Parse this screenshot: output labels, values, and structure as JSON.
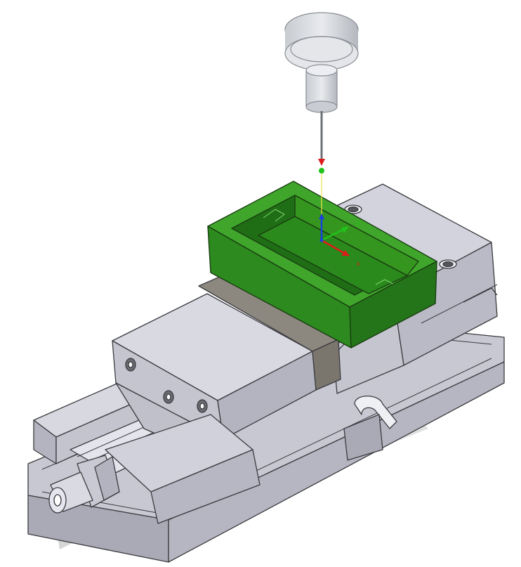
{
  "viewport": {
    "background": "#ffffff",
    "objects": [
      {
        "name": "vise-base",
        "color": "#c9cad4"
      },
      {
        "name": "fixed-jaw",
        "color": "#d4d5de"
      },
      {
        "name": "movable-jaw",
        "color": "#d4d5de"
      },
      {
        "name": "jaw-plate",
        "color": "#8c887f"
      },
      {
        "name": "workpiece-stock",
        "color": "#2f8f20"
      },
      {
        "name": "probe-tool",
        "color": "#d8dadf"
      }
    ],
    "wcs": {
      "x_label": "x",
      "y_label": "y",
      "z_label": "",
      "x_color": "#e01b1b",
      "y_color": "#21c21b",
      "z_color": "#1b3fe0"
    }
  }
}
